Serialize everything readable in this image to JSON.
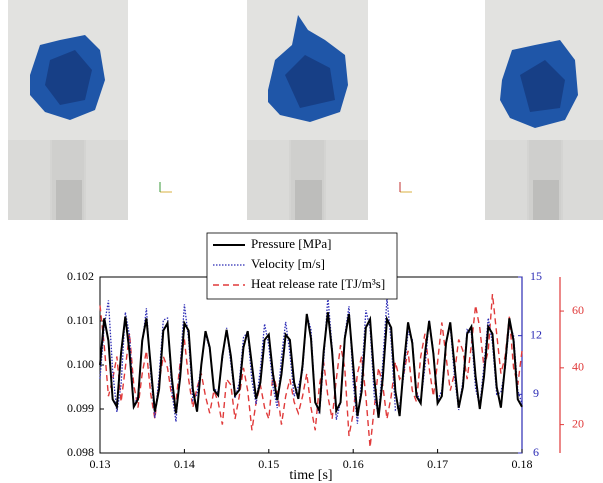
{
  "chart_data": {
    "type": "line",
    "x_label": "time [s]",
    "legend": "top",
    "x": [
      0.13,
      0.1305,
      0.131,
      0.1315,
      0.132,
      0.1325,
      0.133,
      0.1335,
      0.134,
      0.1345,
      0.135,
      0.1355,
      0.136,
      0.1365,
      0.137,
      0.1375,
      0.138,
      0.1385,
      0.139,
      0.1395,
      0.14,
      0.1405,
      0.141,
      0.1415,
      0.142,
      0.1425,
      0.143,
      0.1435,
      0.144,
      0.1445,
      0.145,
      0.1455,
      0.146,
      0.1465,
      0.147,
      0.1475,
      0.148,
      0.1485,
      0.149,
      0.1495,
      0.15,
      0.1505,
      0.151,
      0.1515,
      0.152,
      0.1525,
      0.153,
      0.1535,
      0.154,
      0.1545,
      0.155,
      0.1555,
      0.156,
      0.1565,
      0.157,
      0.1575,
      0.158,
      0.1585,
      0.159,
      0.1595,
      0.16,
      0.1605,
      0.161,
      0.1615,
      0.162,
      0.1625,
      0.163,
      0.1635,
      0.164,
      0.1645,
      0.165,
      0.1655,
      0.166,
      0.1665,
      0.167,
      0.1675,
      0.168,
      0.1685,
      0.169,
      0.1695,
      0.17,
      0.1705,
      0.171,
      0.1715,
      0.172,
      0.1725,
      0.173,
      0.1735,
      0.174,
      0.1745,
      0.175,
      0.1755,
      0.176,
      0.1765,
      0.177,
      0.1775,
      0.178,
      0.1785,
      0.179,
      0.1795,
      0.18
    ],
    "xlim": [
      0.13,
      0.18
    ],
    "xticks": [
      0.13,
      0.14,
      0.15,
      0.16,
      0.17,
      0.18
    ],
    "ylim": [
      0.098,
      0.102
    ],
    "yticks": [
      0.098,
      0.099,
      {
        "value": 0.1,
        "label": "0.100"
      },
      0.101,
      0.102
    ],
    "y2lim": [
      6,
      15
    ],
    "y2ticks": [
      6,
      9,
      12,
      15
    ],
    "y2color": "#2b2bb5",
    "y3lim": [
      10,
      72
    ],
    "y3ticks": [
      20,
      40,
      60
    ],
    "y3color": "#e03a3a",
    "series": [
      {
        "name": "Pressure [MPa]",
        "color": "#000000",
        "dash": "solid",
        "values": [
          0.1,
          0.10106,
          0.10055,
          0.09922,
          0.09905,
          0.10028,
          0.1011,
          0.10028,
          0.09905,
          0.09922,
          0.10055,
          0.10106,
          0.1,
          0.09894,
          0.09945,
          0.10078,
          0.10095,
          0.09972,
          0.0989,
          0.09972,
          0.10095,
          0.10078,
          0.09945,
          0.09894,
          0.1,
          0.10077,
          0.1004,
          0.09943,
          0.09931,
          0.10021,
          0.1008,
          0.10021,
          0.09931,
          0.09943,
          0.1004,
          0.10077,
          0.1,
          0.09923,
          0.0996,
          0.10057,
          0.10069,
          0.09979,
          0.0992,
          0.09979,
          0.10069,
          0.10057,
          0.0996,
          0.09923,
          0.1,
          0.10116,
          0.1006,
          0.09915,
          0.09896,
          0.10031,
          0.1012,
          0.10031,
          0.09896,
          0.09915,
          0.1006,
          0.10116,
          0.1,
          0.09884,
          0.0994,
          0.10085,
          0.10104,
          0.09969,
          0.0988,
          0.09969,
          0.10104,
          0.10085,
          0.0994,
          0.09884,
          0.1,
          0.10097,
          0.1005,
          0.09929,
          0.09913,
          0.10026,
          0.101,
          0.10026,
          0.09913,
          0.09929,
          0.1005,
          0.10097,
          0.1,
          0.09903,
          0.0995,
          0.10071,
          0.10087,
          0.09974,
          0.099,
          0.09974,
          0.10087,
          0.10071,
          0.0995,
          0.09903,
          0.1,
          0.10106,
          0.10055,
          0.09922,
          0.09905
        ]
      },
      {
        "name": "Velocity [m/s]",
        "color": "#2b2bb5",
        "dash": "dotted",
        "axis": "y2",
        "values": [
          9.8,
          12.5,
          13.8,
          10.2,
          8.1,
          9.5,
          13.2,
          12.0,
          8.4,
          8.9,
          11.6,
          13.4,
          10.1,
          7.8,
          9.9,
          12.8,
          12.9,
          9.2,
          7.6,
          10.4,
          13.6,
          11.8,
          8.7,
          9.0,
          10.5,
          12.1,
          11.3,
          9.3,
          9.1,
          10.8,
          12.4,
          10.6,
          8.8,
          9.6,
          11.9,
          12.2,
          9.7,
          8.5,
          10.3,
          12.6,
          11.5,
          9.4,
          8.3,
          10.9,
          12.7,
          11.1,
          8.9,
          9.4,
          10.2,
          13.1,
          12.3,
          8.6,
          8.0,
          10.7,
          14.0,
          11.4,
          7.7,
          8.6,
          12.0,
          13.5,
          9.6,
          7.5,
          9.8,
          13.3,
          12.4,
          8.9,
          7.9,
          10.6,
          13.9,
          11.7,
          8.2,
          8.4,
          10.0,
          12.2,
          11.8,
          9.1,
          8.6,
          10.4,
          12.8,
          11.2,
          8.7,
          9.2,
          11.7,
          12.5,
          9.9,
          8.2,
          9.7,
          12.3,
          12.1,
          9.3,
          8.4,
          10.5,
          12.9,
          11.6,
          9.0,
          9.1,
          10.3,
          12.6,
          12.0,
          9.2,
          8.5
        ]
      },
      {
        "name": "Heat release rate [TJ/m³s]",
        "color": "#e03a3a",
        "dash": "dashed",
        "axis": "y3",
        "values": [
          62,
          48,
          30,
          36,
          44,
          28,
          40,
          52,
          34,
          26,
          38,
          46,
          31,
          22,
          35,
          44,
          40,
          30,
          28,
          42,
          50,
          36,
          26,
          33,
          38,
          30,
          24,
          32,
          28,
          20,
          36,
          34,
          22,
          30,
          40,
          32,
          18,
          28,
          34,
          26,
          22,
          38,
          32,
          20,
          30,
          36,
          28,
          24,
          30,
          38,
          26,
          18,
          34,
          42,
          30,
          22,
          36,
          48,
          40,
          16,
          24,
          38,
          44,
          30,
          12,
          26,
          40,
          34,
          22,
          30,
          42,
          36,
          38,
          46,
          32,
          28,
          44,
          52,
          40,
          30,
          42,
          56,
          44,
          32,
          38,
          50,
          46,
          36,
          48,
          62,
          54,
          40,
          46,
          66,
          52,
          38,
          44,
          58,
          40,
          34,
          46
        ]
      }
    ]
  }
}
